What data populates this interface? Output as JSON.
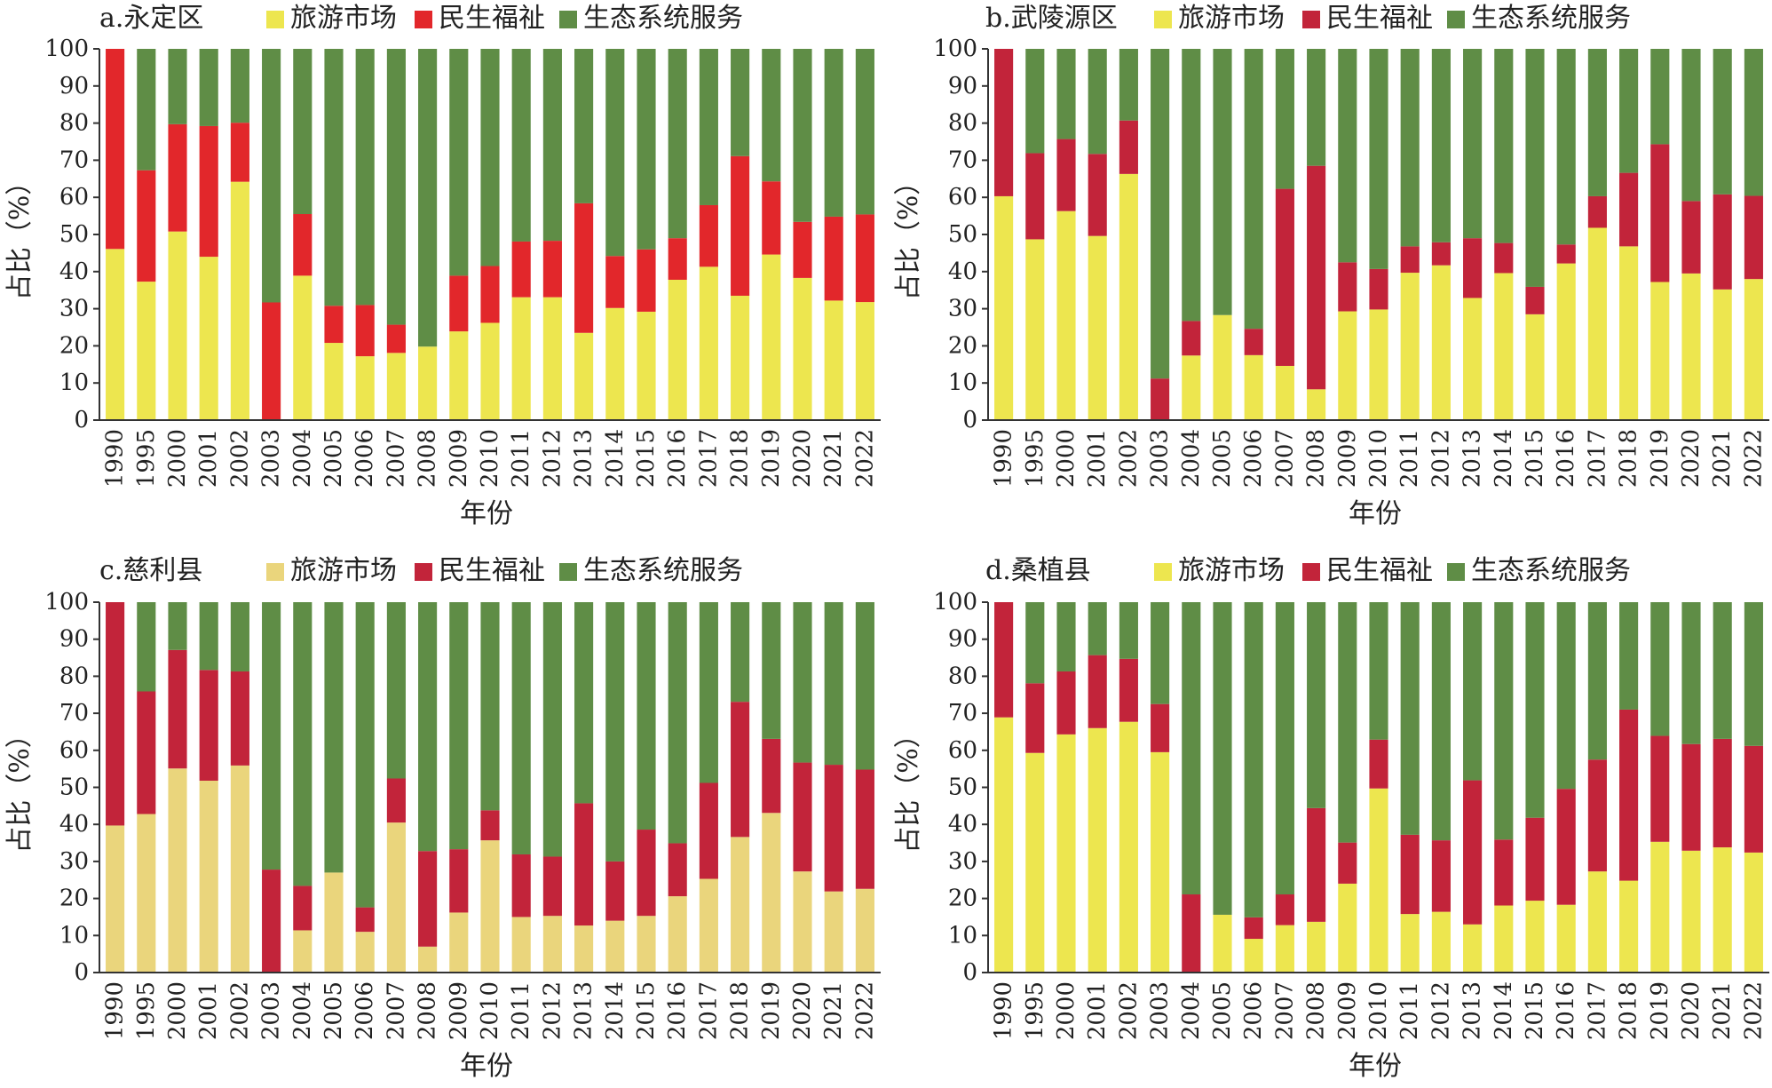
{
  "ui": {
    "text_color": "#222222",
    "axis_color": "#333333"
  },
  "chart_data": [
    {
      "type": "bar",
      "stacked": true,
      "title": "a.永定区",
      "xlabel": "年份",
      "ylabel": "占比（%）",
      "ylim": [
        0,
        100
      ],
      "yticks": [
        0,
        10,
        20,
        30,
        40,
        50,
        60,
        70,
        80,
        90,
        100
      ],
      "legend_position": "top",
      "categories": [
        "1990",
        "1995",
        "2000",
        "2001",
        "2002",
        "2003",
        "2004",
        "2005",
        "2006",
        "2007",
        "2008",
        "2009",
        "2010",
        "2011",
        "2012",
        "2013",
        "2014",
        "2015",
        "2016",
        "2017",
        "2018",
        "2019",
        "2020",
        "2021",
        "2022"
      ],
      "series": [
        {
          "name": "旅游市场",
          "color": "#ede64f",
          "values": [
            46.1,
            37.3,
            50.8,
            44.0,
            64.2,
            0,
            38.9,
            20.8,
            17.2,
            18.1,
            19.8,
            23.9,
            26.2,
            33.1,
            33.1,
            23.5,
            30.2,
            29.2,
            37.8,
            41.3,
            33.5,
            44.6,
            38.3,
            32.2,
            31.8
          ]
        },
        {
          "name": "民生福祉",
          "color": "#e2272b",
          "values": [
            53.9,
            30.0,
            28.9,
            35.2,
            15.9,
            31.7,
            16.6,
            10.0,
            13.8,
            7.6,
            0,
            15.0,
            15.3,
            15.0,
            15.2,
            34.9,
            14.0,
            16.8,
            11.2,
            16.6,
            37.6,
            19.7,
            15.1,
            22.6,
            23.6
          ]
        },
        {
          "name": "生态系统服务",
          "color": "#5f8d46",
          "values": [
            0,
            32.7,
            20.3,
            20.8,
            19.9,
            68.3,
            44.5,
            69.2,
            69.0,
            74.3,
            80.2,
            61.1,
            58.5,
            51.9,
            51.7,
            41.6,
            55.8,
            54.0,
            51.0,
            42.1,
            28.9,
            35.7,
            46.6,
            45.2,
            44.6
          ]
        }
      ]
    },
    {
      "type": "bar",
      "stacked": true,
      "title": "b.武陵源区",
      "xlabel": "年份",
      "ylabel": "占比（%）",
      "ylim": [
        0,
        100
      ],
      "yticks": [
        0,
        10,
        20,
        30,
        40,
        50,
        60,
        70,
        80,
        90,
        100
      ],
      "legend_position": "top",
      "categories": [
        "1990",
        "1995",
        "2000",
        "2001",
        "2002",
        "2003",
        "2004",
        "2005",
        "2006",
        "2007",
        "2008",
        "2009",
        "2010",
        "2011",
        "2012",
        "2013",
        "2014",
        "2015",
        "2016",
        "2017",
        "2018",
        "2019",
        "2020",
        "2021",
        "2022"
      ],
      "series": [
        {
          "name": "旅游市场",
          "color": "#ede64f",
          "values": [
            60.3,
            48.7,
            56.3,
            49.6,
            66.3,
            0,
            17.4,
            28.3,
            17.5,
            14.6,
            8.3,
            29.3,
            29.8,
            39.7,
            41.7,
            32.9,
            39.6,
            28.5,
            42.2,
            51.8,
            46.8,
            37.2,
            39.5,
            35.2,
            38.0
          ]
        },
        {
          "name": "民生福祉",
          "color": "#c2243a",
          "values": [
            39.7,
            23.2,
            19.4,
            22.1,
            14.4,
            11.2,
            9.3,
            0,
            7.1,
            47.7,
            60.2,
            13.2,
            10.9,
            7.1,
            6.2,
            16.1,
            8.1,
            7.4,
            5.1,
            8.5,
            19.8,
            37.1,
            19.5,
            25.6,
            22.4
          ]
        },
        {
          "name": "生态系统服务",
          "color": "#5f8d46",
          "values": [
            0,
            28.1,
            24.3,
            28.3,
            19.3,
            88.8,
            73.3,
            71.7,
            75.4,
            37.7,
            31.5,
            57.5,
            59.3,
            53.2,
            52.1,
            51.0,
            52.3,
            64.1,
            52.7,
            39.7,
            33.4,
            25.7,
            41.0,
            39.2,
            39.6
          ]
        }
      ]
    },
    {
      "type": "bar",
      "stacked": true,
      "title": "c.慈利县",
      "xlabel": "年份",
      "ylabel": "占比（%）",
      "ylim": [
        0,
        100
      ],
      "yticks": [
        0,
        10,
        20,
        30,
        40,
        50,
        60,
        70,
        80,
        90,
        100
      ],
      "legend_position": "top",
      "categories": [
        "1990",
        "1995",
        "2000",
        "2001",
        "2002",
        "2003",
        "2004",
        "2005",
        "2006",
        "2007",
        "2008",
        "2009",
        "2010",
        "2011",
        "2012",
        "2013",
        "2014",
        "2015",
        "2016",
        "2017",
        "2018",
        "2019",
        "2020",
        "2021",
        "2022"
      ],
      "series": [
        {
          "name": "旅游市场",
          "color": "#ead57c",
          "values": [
            39.7,
            42.8,
            55.1,
            51.8,
            55.9,
            0,
            11.4,
            27.0,
            11.0,
            40.5,
            7.0,
            16.2,
            35.7,
            15.0,
            15.3,
            12.7,
            14.0,
            15.3,
            20.6,
            25.3,
            36.6,
            43.1,
            27.3,
            21.9,
            22.6
          ]
        },
        {
          "name": "民生福祉",
          "color": "#c2243a",
          "values": [
            60.3,
            33.1,
            32.0,
            29.9,
            25.4,
            27.8,
            12.0,
            0,
            6.6,
            11.9,
            25.8,
            17.1,
            8.1,
            16.9,
            16.0,
            33.0,
            16.0,
            23.3,
            14.3,
            25.9,
            36.5,
            20.0,
            29.4,
            34.2,
            32.2
          ]
        },
        {
          "name": "生态系统服务",
          "color": "#5f8d46",
          "values": [
            0,
            24.1,
            12.9,
            18.3,
            18.7,
            72.2,
            76.6,
            73.0,
            82.4,
            47.6,
            67.2,
            66.7,
            56.2,
            68.1,
            68.7,
            54.3,
            70.0,
            61.4,
            65.1,
            48.8,
            26.9,
            36.9,
            43.3,
            43.9,
            45.2
          ]
        }
      ]
    },
    {
      "type": "bar",
      "stacked": true,
      "title": "d.桑植县",
      "xlabel": "年份",
      "ylabel": "占比（%）",
      "ylim": [
        0,
        100
      ],
      "yticks": [
        0,
        10,
        20,
        30,
        40,
        50,
        60,
        70,
        80,
        90,
        100
      ],
      "legend_position": "top",
      "categories": [
        "1990",
        "1995",
        "2000",
        "2001",
        "2002",
        "2003",
        "2004",
        "2005",
        "2006",
        "2007",
        "2008",
        "2009",
        "2010",
        "2011",
        "2012",
        "2013",
        "2014",
        "2015",
        "2016",
        "2017",
        "2018",
        "2019",
        "2020",
        "2021",
        "2022"
      ],
      "series": [
        {
          "name": "旅游市场",
          "color": "#ede64f",
          "values": [
            68.9,
            59.3,
            64.3,
            66.0,
            67.7,
            59.5,
            0,
            15.6,
            9.1,
            12.8,
            13.7,
            24.0,
            49.7,
            15.8,
            16.4,
            13.0,
            18.1,
            19.4,
            18.3,
            27.3,
            24.8,
            35.3,
            32.9,
            33.8,
            32.4
          ]
        },
        {
          "name": "民生福祉",
          "color": "#c2243a",
          "values": [
            31.1,
            18.8,
            17.0,
            19.7,
            17.0,
            13.0,
            21.1,
            0,
            5.8,
            8.3,
            30.7,
            11.1,
            13.2,
            21.4,
            19.3,
            38.9,
            17.8,
            22.4,
            31.3,
            30.2,
            46.2,
            28.6,
            28.8,
            29.3,
            28.8
          ]
        },
        {
          "name": "生态系统服务",
          "color": "#5f8d46",
          "values": [
            0,
            21.9,
            18.7,
            14.3,
            15.3,
            27.5,
            78.9,
            84.4,
            85.1,
            78.9,
            55.6,
            64.9,
            37.1,
            62.8,
            64.3,
            48.1,
            64.1,
            58.2,
            50.4,
            42.5,
            29.0,
            36.1,
            38.3,
            36.9,
            38.8
          ]
        }
      ]
    }
  ]
}
